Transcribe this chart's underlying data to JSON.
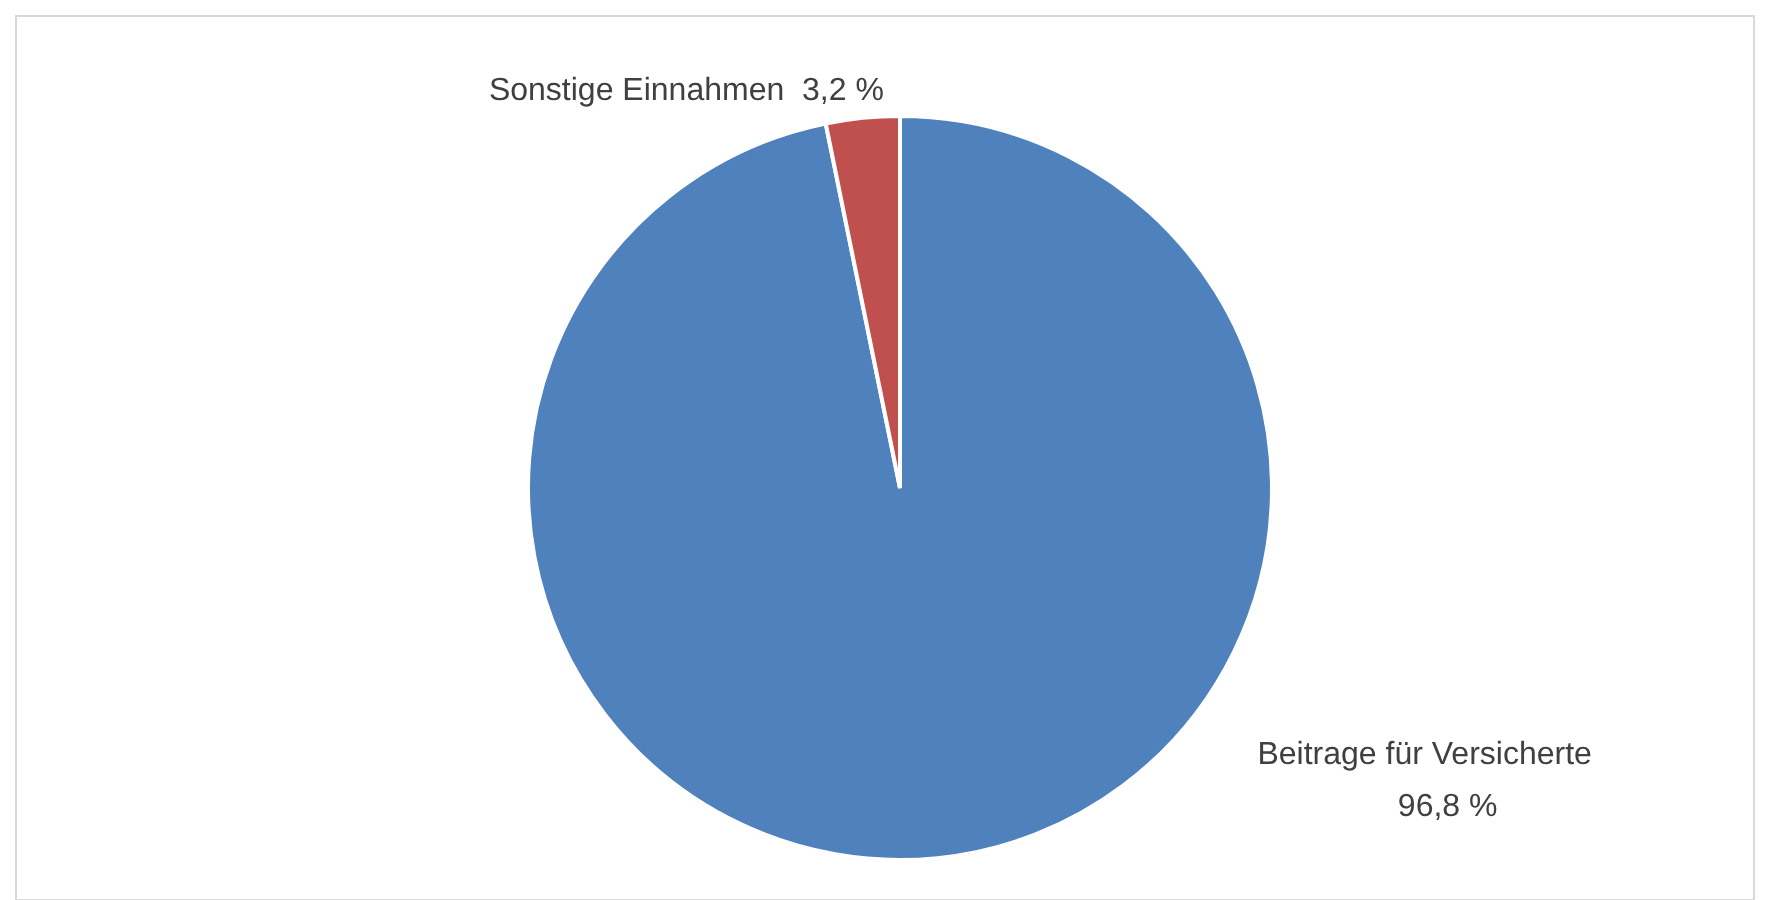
{
  "chart_data": {
    "type": "pie",
    "categories": [
      "Beitrage für Versicherte",
      "Sonstige Einnahmen"
    ],
    "values": [
      96.8,
      3.2
    ],
    "colors": [
      "#4f81bd",
      "#c0504d"
    ],
    "value_labels": [
      "96,8 %",
      "3,2 %"
    ]
  }
}
